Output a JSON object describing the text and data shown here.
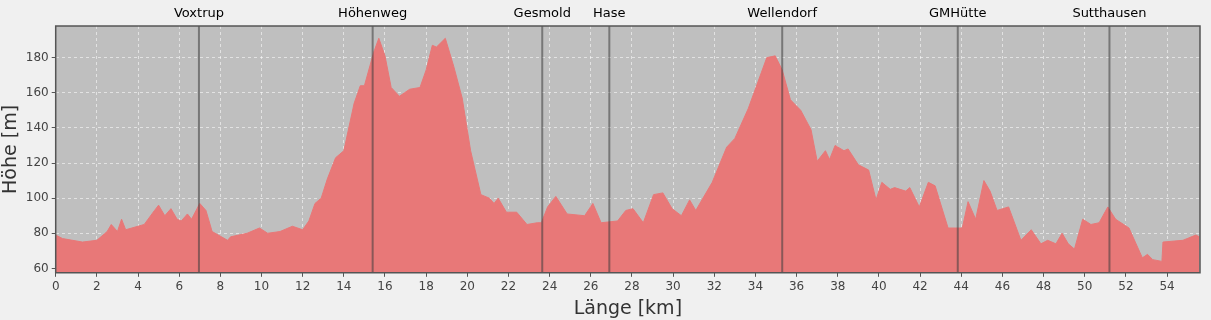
{
  "chart_data": {
    "type": "area",
    "xlabel": "Länge [km]",
    "ylabel": "Höhe [m]",
    "x": [
      0,
      0.33,
      1.3,
      2,
      2.5,
      2.7,
      3.0,
      3.2,
      3.4,
      4.3,
      4.8,
      5.0,
      5.3,
      5.6,
      5.9,
      6.1,
      6.4,
      6.6,
      7.0,
      7.3,
      7.6,
      8.35,
      8.5,
      9.3,
      9.9,
      10.3,
      10.9,
      11.5,
      12.0,
      12.3,
      12.6,
      12.9,
      13.2,
      13.6,
      14.0,
      14.5,
      14.8,
      15.0,
      15.45,
      15.7,
      16.0,
      16.3,
      16.7,
      17.2,
      17.7,
      18.0,
      18.3,
      18.5,
      18.93,
      19.34,
      19.75,
      20.16,
      20.66,
      21.07,
      21.3,
      21.5,
      21.9,
      22.4,
      22.9,
      23.4,
      23.6,
      23.9,
      24.3,
      24.85,
      25.7,
      26.1,
      26.5,
      27.3,
      27.7,
      28.05,
      28.55,
      29.05,
      29.5,
      29.95,
      30.4,
      30.8,
      31.1,
      31.9,
      32.6,
      33.0,
      33.65,
      34.55,
      34.96,
      35.3,
      35.7,
      36.2,
      36.7,
      37.0,
      37.4,
      37.6,
      37.87,
      38.3,
      38.5,
      39.0,
      39.5,
      39.86,
      40.14,
      40.55,
      40.76,
      41.3,
      41.5,
      41.96,
      42.4,
      42.73,
      43.36,
      43.7,
      44.05,
      44.33,
      44.7,
      45.1,
      45.4,
      45.74,
      46.3,
      46.9,
      47.4,
      47.87,
      48.2,
      48.6,
      48.9,
      49.2,
      49.5,
      49.9,
      50.3,
      50.7,
      51.12,
      51.5,
      52.15,
      52.8,
      53.05,
      53.3,
      53.75,
      53.8,
      54.77,
      55.4,
      55.57
    ],
    "values": [
      79,
      77,
      75,
      76,
      81,
      85,
      81,
      88,
      82,
      85,
      93,
      96,
      90,
      94,
      88,
      87,
      91,
      88,
      97,
      93,
      81,
      76,
      78,
      80,
      83,
      80,
      81,
      84,
      82,
      87,
      97,
      100,
      111,
      123,
      127,
      154,
      164,
      164,
      183,
      191,
      181,
      163,
      158,
      162,
      163,
      173,
      187,
      186,
      191,
      175,
      157,
      127,
      102,
      100,
      97,
      100,
      92,
      92,
      85,
      86,
      86,
      95,
      101,
      91,
      90,
      97,
      86,
      87,
      93,
      94,
      86,
      102,
      103,
      94,
      90,
      99,
      93,
      109,
      129,
      134,
      151,
      180,
      181,
      173,
      156,
      150,
      139,
      121,
      127,
      122,
      130,
      127,
      128,
      119,
      116,
      99,
      109,
      105,
      106,
      104,
      106,
      95,
      109,
      107,
      83,
      83,
      83,
      98,
      88,
      110,
      104,
      93,
      95,
      76,
      82,
      74,
      76,
      74,
      80,
      74,
      71,
      88,
      85,
      86,
      95,
      88,
      83,
      66,
      68,
      65,
      64,
      75,
      76,
      79,
      78
    ],
    "color": "#e87878",
    "xlim": [
      0,
      55.6
    ],
    "ylim": [
      57.5,
      198
    ],
    "xticks": [
      0,
      2,
      4,
      6,
      8,
      10,
      12,
      14,
      16,
      18,
      20,
      22,
      24,
      26,
      28,
      30,
      32,
      34,
      36,
      38,
      40,
      42,
      44,
      46,
      48,
      50,
      52,
      54
    ],
    "yticks": [
      60,
      80,
      100,
      120,
      140,
      160,
      180
    ],
    "grid": true,
    "legend": false,
    "ref_lines": [
      {
        "axis": "x",
        "value": 6.96,
        "label": "Voxtrup"
      },
      {
        "axis": "x",
        "value": 15.4,
        "label": "Höhenweg"
      },
      {
        "axis": "x",
        "value": 23.64,
        "label": "Gesmold"
      },
      {
        "axis": "x",
        "value": 26.9,
        "label": "Hase"
      },
      {
        "axis": "x",
        "value": 35.3,
        "label": "Wellendorf"
      },
      {
        "axis": "x",
        "value": 43.83,
        "label": "GMHütte"
      },
      {
        "axis": "x",
        "value": 51.2,
        "label": "Sutthausen"
      }
    ]
  }
}
